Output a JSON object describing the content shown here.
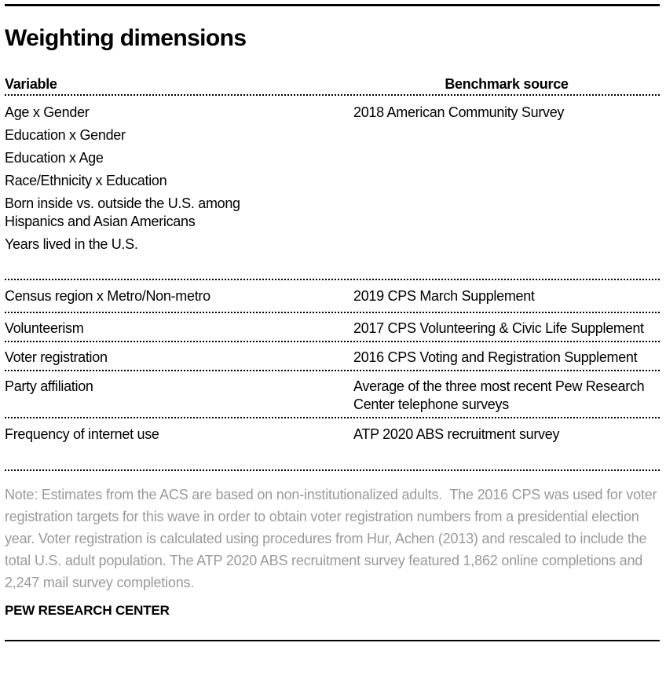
{
  "title": "Weighting dimensions",
  "chart_data": {
    "type": "table",
    "title": "Weighting dimensions",
    "columns": [
      "Variable",
      "Benchmark source"
    ],
    "rows": [
      {
        "variables": [
          "Age x Gender",
          "Education x Gender",
          "Education x Age",
          "Race/Ethnicity x Education",
          "Born inside vs. outside the U.S. among Hispanics and Asian Americans",
          "Years lived in the U.S."
        ],
        "benchmark": "2018 American Community Survey"
      },
      {
        "variables": [
          "Census region x Metro/Non-metro"
        ],
        "benchmark": "2019 CPS March Supplement"
      },
      {
        "variables": [
          "Volunteerism"
        ],
        "benchmark": "2017 CPS Volunteering & Civic Life Supplement"
      },
      {
        "variables": [
          "Voter registration"
        ],
        "benchmark": "2016 CPS Voting and Registration Supplement"
      },
      {
        "variables": [
          "Party affiliation"
        ],
        "benchmark": "Average of the three most recent Pew Research Center telephone surveys"
      },
      {
        "variables": [
          "Frequency of internet use"
        ],
        "benchmark": "ATP 2020 ABS recruitment survey"
      }
    ],
    "layout": {
      "legend": "none",
      "row_separators": "dotted",
      "header_style": "bold, right column header centered"
    }
  },
  "note": "Note: Estimates from the ACS are based on non-institutionalized adults.  The 2016 CPS was used for voter registration targets for this wave in order to obtain voter registration numbers from a presidential election year. Voter registration is calculated using procedures from Hur, Achen (2013) and rescaled to include the total U.S. adult population. The ATP 2020 ABS recruitment survey featured 1,862 online completions and 2,247 mail survey completions.",
  "footer": "PEW RESEARCH CENTER",
  "colors": {
    "text": "#000000",
    "note_text": "#9a9a9a",
    "rule": "#000000"
  }
}
